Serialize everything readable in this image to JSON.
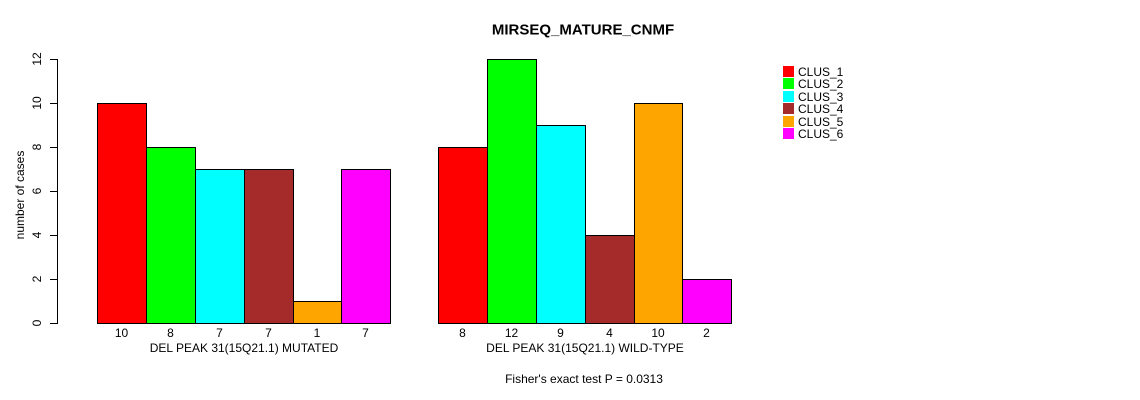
{
  "chart_data": {
    "type": "bar",
    "title": "MIRSEQ_MATURE_CNMF",
    "ylabel": "number of cases",
    "xlabel": "",
    "ylim": [
      0,
      12
    ],
    "yticks": [
      0,
      2,
      4,
      6,
      8,
      10,
      12
    ],
    "grid": false,
    "legend_position": "right-outside",
    "series": [
      {
        "name": "CLUS_1",
        "color": "#FF0000"
      },
      {
        "name": "CLUS_2",
        "color": "#00FF00"
      },
      {
        "name": "CLUS_3",
        "color": "#00FFFF"
      },
      {
        "name": "CLUS_4",
        "color": "#A52A2A"
      },
      {
        "name": "CLUS_5",
        "color": "#FFA500"
      },
      {
        "name": "CLUS_6",
        "color": "#FF00FF"
      }
    ],
    "groups": [
      {
        "label": "DEL PEAK 31(15Q21.1) MUTATED",
        "values": [
          10,
          8,
          7,
          7,
          1,
          7
        ]
      },
      {
        "label": "DEL PEAK 31(15Q21.1) WILD-TYPE",
        "values": [
          8,
          12,
          9,
          4,
          10,
          2
        ]
      }
    ],
    "bar_value_labels_shown": true
  },
  "footer": {
    "note": "Fisher's exact test P = 0.0313"
  }
}
